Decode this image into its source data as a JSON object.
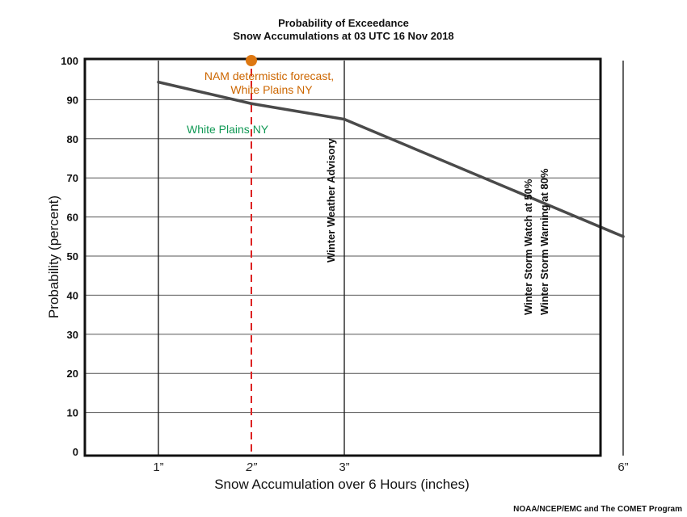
{
  "chart_data": {
    "type": "line",
    "title": "Probability of Exceedance",
    "subtitle": "Snow Accumulations at 03 UTC 16 Nov 2018",
    "xlabel": "Snow Accumulation over 6 Hours (inches)",
    "ylabel": "Probability (percent)",
    "xlim": [
      0,
      7
    ],
    "ylim": [
      0,
      100
    ],
    "yticks": [
      0,
      10,
      20,
      30,
      40,
      50,
      60,
      70,
      80,
      90,
      100
    ],
    "xticks": [
      {
        "value": 1,
        "label": "1”",
        "color": "#222222"
      },
      {
        "value": 2,
        "label": "2”",
        "color": "#cc2222"
      },
      {
        "value": 3,
        "label": "3”",
        "color": "#222222"
      },
      {
        "value": 6,
        "label": "6”",
        "color": "#222222"
      }
    ],
    "grid": true,
    "series": [
      {
        "name": "White Plains NY",
        "color": "#4a4a4a",
        "x": [
          1,
          2,
          3,
          6
        ],
        "y": [
          94.5,
          89,
          85,
          55
        ]
      }
    ],
    "threshold_lines": [
      {
        "x": 1,
        "color": "#222222",
        "style": "solid"
      },
      {
        "x": 3,
        "color": "#222222",
        "style": "solid"
      },
      {
        "x": 6,
        "color": "#222222",
        "style": "solid"
      },
      {
        "x": 2,
        "color": "#dd2222",
        "style": "dashed"
      }
    ],
    "forecast_point": {
      "x": 2,
      "y": 100,
      "color": "#dd7711"
    },
    "annotations": {
      "nam_line1": "NAM determistic forecast,",
      "nam_line2": "White Plains NY",
      "nam_color": "#cc6600",
      "series_label": "White Plains NY",
      "series_label_color": "#119955",
      "advisory": "Winter Weather Advisory",
      "watch": "Winter Storm Watch at 50%",
      "warning": "Winter Storm Warning at 80%"
    }
  },
  "credit": "NOAA/NCEP/EMC and The COMET Program"
}
